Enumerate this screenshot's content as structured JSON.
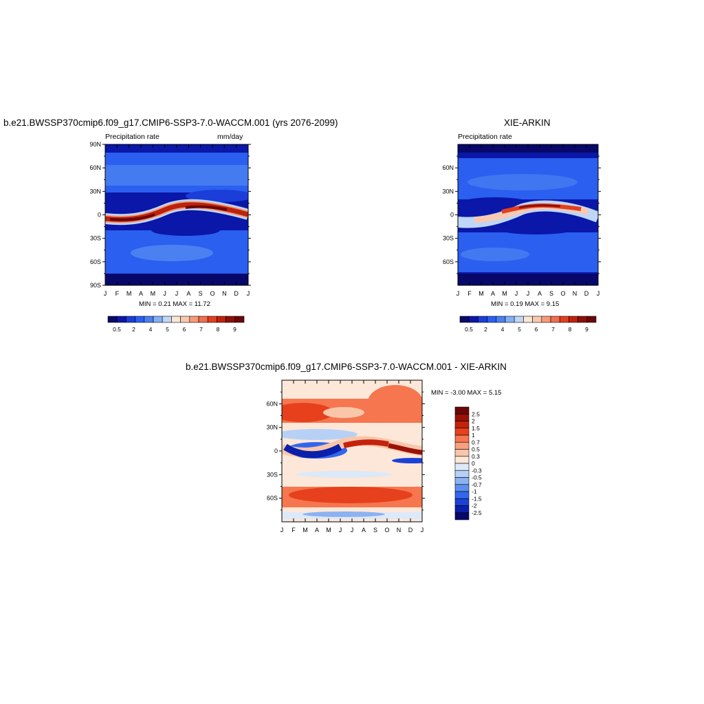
{
  "chart_data": [
    {
      "type": "heatmap",
      "title": "b.e21.BWSSP370cmip6.f09_g17.CMIP6-SSP3-7.0-WACCM.001 (yrs 2076-2099)",
      "left_label": "Precipitation rate",
      "right_label": "mm/day",
      "x_ticks": [
        "J",
        "F",
        "M",
        "A",
        "M",
        "J",
        "J",
        "A",
        "S",
        "O",
        "N",
        "D",
        "J"
      ],
      "y_ticks": [
        "90N",
        "60N",
        "30N",
        "0",
        "30S",
        "60S",
        "90S"
      ],
      "y_values": [
        90,
        60,
        30,
        0,
        -30,
        -60,
        -90
      ],
      "ylim": [
        -90,
        90
      ],
      "min_max_text": "MIN =   0.21 MAX =  11.72",
      "colorbar_labels": [
        "0.5",
        "2",
        "4",
        "5",
        "6",
        "7",
        "8",
        "9"
      ],
      "colorbar_levels": [
        0.5,
        1,
        2,
        3,
        4,
        5,
        5.5,
        6,
        6.5,
        7,
        7.5,
        8,
        8.5,
        9
      ]
    },
    {
      "type": "heatmap",
      "title": "XIE-ARKIN",
      "left_label": "Precipitation rate",
      "x_ticks": [
        "J",
        "F",
        "M",
        "A",
        "M",
        "J",
        "J",
        "A",
        "S",
        "O",
        "N",
        "D",
        "J"
      ],
      "y_ticks": [
        "60N",
        "30N",
        "0",
        "30S",
        "60S"
      ],
      "y_values": [
        60,
        30,
        0,
        -30,
        -60
      ],
      "ylim": [
        -90,
        90
      ],
      "min_max_text": "MIN =   0.19 MAX =   9.15",
      "colorbar_labels": [
        "0.5",
        "2",
        "4",
        "5",
        "6",
        "7",
        "8",
        "9"
      ],
      "colorbar_levels": [
        0.5,
        1,
        2,
        3,
        4,
        5,
        5.5,
        6,
        6.5,
        7,
        7.5,
        8,
        8.5,
        9
      ]
    },
    {
      "type": "heatmap",
      "title": "b.e21.BWSSP370cmip6.f09_g17.CMIP6-SSP3-7.0-WACCM.001 - XIE-ARKIN",
      "x_ticks": [
        "J",
        "F",
        "M",
        "A",
        "M",
        "J",
        "J",
        "A",
        "S",
        "O",
        "N",
        "D",
        "J"
      ],
      "y_ticks": [
        "60N",
        "30N",
        "0",
        "30S",
        "60S"
      ],
      "y_values": [
        60,
        30,
        0,
        -30,
        -60
      ],
      "ylim": [
        -90,
        90
      ],
      "min_max_text": "MIN =  -3.00 MAX =   5.15",
      "colorbar_labels": [
        "2.5",
        "2",
        "1.5",
        "1",
        "0.7",
        "0.5",
        "0.3",
        "0",
        "-0.3",
        "-0.5",
        "-0.7",
        "-1",
        "-1.5",
        "-2",
        "-2.5"
      ],
      "colorbar_levels": [
        2.5,
        2,
        1.5,
        1,
        0.7,
        0.5,
        0.3,
        0,
        -0.3,
        -0.5,
        -0.7,
        -1,
        -1.5,
        -2,
        -2.5
      ]
    }
  ],
  "colors": {
    "precip_scale": [
      "#08086b",
      "#0a17a8",
      "#1b3ed8",
      "#2a5ff0",
      "#4a80f0",
      "#86aef2",
      "#bed6f7",
      "#fbe7d6",
      "#fac8b0",
      "#f69b79",
      "#ef6f4f",
      "#e0401f",
      "#bb230e",
      "#8b1008",
      "#6b0707"
    ],
    "diff_scale": [
      "#6b0707",
      "#9a1108",
      "#c4220c",
      "#e6411c",
      "#f5764f",
      "#f8a07e",
      "#fac6aa",
      "#fde7d8",
      "#dce9f9",
      "#b7d1f6",
      "#8bb2f1",
      "#5b8ff0",
      "#3366ee",
      "#1b42d6",
      "#0a20aa",
      "#08086b"
    ]
  }
}
